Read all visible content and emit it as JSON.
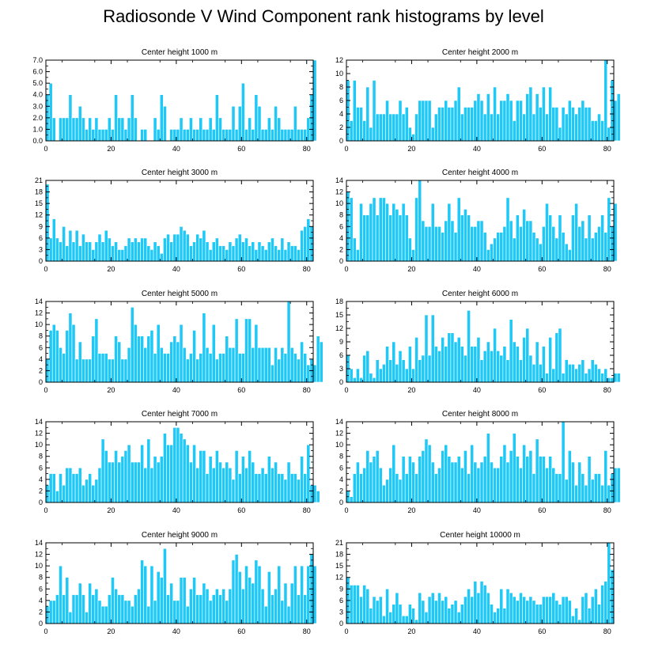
{
  "title": "Radiosonde V Wind Component rank histograms by level",
  "colors": {
    "bar": "#1ec8f7",
    "bar_edge": "#ffffff",
    "axis": "#000000"
  },
  "chart_data": [
    {
      "type": "bar",
      "title": "Center height 1000 m",
      "ylim": [
        0,
        7
      ],
      "yticks": [
        "0.0",
        "1.0",
        "2.0",
        "3.0",
        "4.0",
        "5.0",
        "6.0",
        "7.0"
      ],
      "xlim": [
        0,
        82
      ],
      "xticks": [
        0,
        20,
        40,
        60,
        80
      ],
      "values": [
        4,
        5,
        2,
        0,
        2,
        2,
        2,
        4,
        2,
        2,
        3,
        2,
        1,
        2,
        1,
        2,
        1,
        1,
        1,
        2,
        1,
        4,
        2,
        2,
        1,
        2,
        4,
        2,
        0,
        1,
        1,
        0,
        0,
        2,
        1,
        4,
        3,
        0,
        1,
        1,
        1,
        2,
        1,
        1,
        2,
        1,
        1,
        2,
        1,
        1,
        2,
        1,
        4,
        2,
        1,
        1,
        1,
        3,
        1,
        3,
        5,
        1,
        2,
        1,
        4,
        3,
        1,
        1,
        2,
        1,
        3,
        2,
        1,
        1,
        1,
        1,
        3,
        1,
        1,
        1,
        2,
        4,
        7
      ]
    },
    {
      "type": "bar",
      "title": "Center height 2000 m",
      "ylim": [
        0,
        12
      ],
      "yticks": [
        "0",
        "2",
        "4",
        "6",
        "8",
        "10",
        "12"
      ],
      "xlim": [
        0,
        82
      ],
      "xticks": [
        0,
        20,
        40,
        60,
        80
      ],
      "values": [
        9,
        3,
        9,
        5,
        5,
        3,
        8,
        2,
        9,
        4,
        4,
        4,
        6,
        4,
        4,
        4,
        6,
        4,
        5,
        2,
        1,
        4,
        6,
        6,
        6,
        6,
        2,
        4,
        5,
        5,
        6,
        5,
        5,
        6,
        8,
        4,
        5,
        5,
        5,
        6,
        7,
        6,
        4,
        7,
        4,
        8,
        4,
        6,
        6,
        7,
        6,
        3,
        6,
        6,
        4,
        7,
        8,
        4,
        7,
        5,
        8,
        4,
        8,
        5,
        5,
        2,
        5,
        4,
        6,
        5,
        4,
        5,
        6,
        5,
        5,
        3,
        3,
        4,
        3,
        12,
        2,
        9,
        6,
        7
      ]
    },
    {
      "type": "bar",
      "title": "Center height 3000 m",
      "ylim": [
        0,
        21
      ],
      "yticks": [
        "0",
        "3",
        "6",
        "9",
        "12",
        "15",
        "18",
        "21"
      ],
      "xlim": [
        0,
        82
      ],
      "xticks": [
        0,
        20,
        40,
        60,
        80
      ],
      "values": [
        20,
        6,
        11,
        6,
        5,
        9,
        4,
        8,
        5,
        8,
        4,
        7,
        5,
        5,
        3,
        5,
        7,
        5,
        8,
        6,
        4,
        5,
        3,
        3,
        4,
        6,
        5,
        6,
        5,
        6,
        6,
        4,
        3,
        5,
        4,
        2,
        6,
        7,
        5,
        7,
        7,
        9,
        8,
        7,
        4,
        5,
        7,
        6,
        8,
        5,
        3,
        5,
        6,
        4,
        4,
        3,
        5,
        4,
        6,
        7,
        5,
        6,
        4,
        5,
        3,
        5,
        4,
        3,
        5,
        6,
        4,
        3,
        6,
        3,
        5,
        4,
        4,
        3,
        8,
        9,
        11,
        9
      ]
    },
    {
      "type": "bar",
      "title": "Center height 4000 m",
      "ylim": [
        0,
        14
      ],
      "yticks": [
        "0",
        "2",
        "4",
        "6",
        "8",
        "10",
        "12",
        "14"
      ],
      "xlim": [
        0,
        82
      ],
      "xticks": [
        0,
        20,
        40,
        60,
        80
      ],
      "values": [
        12,
        11,
        4,
        2,
        10,
        8,
        8,
        10,
        11,
        8,
        11,
        11,
        10,
        8,
        10,
        9,
        8,
        10,
        8,
        4,
        2,
        11,
        14,
        7,
        6,
        6,
        10,
        6,
        6,
        5,
        7,
        10,
        7,
        5,
        11,
        8,
        9,
        8,
        6,
        6,
        7,
        7,
        5,
        2,
        3,
        4,
        5,
        5,
        6,
        11,
        7,
        4,
        8,
        6,
        9,
        7,
        7,
        5,
        4,
        3,
        6,
        10,
        8,
        6,
        4,
        8,
        5,
        3,
        2,
        8,
        10,
        6,
        7,
        4,
        8,
        4,
        5,
        6,
        8,
        5,
        11,
        6,
        10
      ]
    },
    {
      "type": "bar",
      "title": "Center height 5000 m",
      "ylim": [
        0,
        14
      ],
      "yticks": [
        "0",
        "2",
        "4",
        "6",
        "8",
        "10",
        "12",
        "14"
      ],
      "xlim": [
        0,
        82
      ],
      "xticks": [
        0,
        20,
        40,
        60,
        80
      ],
      "values": [
        4,
        9,
        10,
        9,
        6,
        5,
        9,
        12,
        10,
        4,
        7,
        4,
        4,
        4,
        8,
        11,
        5,
        5,
        5,
        4,
        4,
        8,
        7,
        4,
        4,
        6,
        13,
        10,
        8,
        8,
        6,
        8,
        9,
        5,
        10,
        6,
        5,
        5,
        7,
        8,
        7,
        10,
        6,
        4,
        5,
        9,
        4,
        5,
        12,
        6,
        5,
        10,
        4,
        5,
        5,
        8,
        6,
        6,
        11,
        5,
        5,
        11,
        11,
        6,
        10,
        6,
        6,
        6,
        6,
        3,
        6,
        4,
        6,
        5,
        14,
        6,
        5,
        4,
        7,
        5,
        3,
        4,
        3,
        8,
        7
      ]
    },
    {
      "type": "bar",
      "title": "Center height 6000 m",
      "ylim": [
        0,
        18
      ],
      "yticks": [
        "0",
        "3",
        "6",
        "9",
        "12",
        "15",
        "18"
      ],
      "xlim": [
        0,
        82
      ],
      "xticks": [
        0,
        20,
        40,
        60,
        80
      ],
      "values": [
        6,
        3,
        1,
        3,
        1,
        6,
        7,
        2,
        1,
        5,
        3,
        4,
        8,
        5,
        9,
        4,
        7,
        5,
        3,
        8,
        3,
        10,
        5,
        6,
        15,
        6,
        15,
        8,
        7,
        10,
        8,
        11,
        11,
        9,
        10,
        8,
        6,
        16,
        8,
        8,
        10,
        5,
        7,
        9,
        7,
        12,
        7,
        6,
        8,
        5,
        14,
        9,
        8,
        5,
        10,
        12,
        6,
        4,
        9,
        4,
        8,
        2,
        10,
        3,
        11,
        12,
        2,
        5,
        4,
        4,
        3,
        4,
        5,
        2,
        3,
        5,
        4,
        3,
        2,
        3,
        1,
        1,
        2,
        2
      ]
    },
    {
      "type": "bar",
      "title": "Center height 7000 m",
      "ylim": [
        0,
        14
      ],
      "yticks": [
        "0",
        "2",
        "4",
        "6",
        "8",
        "10",
        "12",
        "14"
      ],
      "xlim": [
        0,
        82
      ],
      "xticks": [
        0,
        20,
        40,
        60,
        80
      ],
      "values": [
        3,
        5,
        5,
        2,
        5,
        3,
        6,
        6,
        5,
        5,
        6,
        3,
        4,
        5,
        3,
        4,
        6,
        11,
        9,
        7,
        7,
        9,
        7,
        8,
        9,
        10,
        7,
        7,
        7,
        10,
        6,
        11,
        6,
        8,
        7,
        8,
        12,
        10,
        10,
        13,
        13,
        12,
        11,
        10,
        7,
        10,
        6,
        9,
        9,
        5,
        8,
        6,
        9,
        7,
        6,
        7,
        6,
        4,
        9,
        5,
        8,
        6,
        9,
        7,
        5,
        5,
        6,
        5,
        8,
        6,
        7,
        5,
        5,
        4,
        7,
        5,
        5,
        4,
        8,
        5,
        10,
        3,
        3,
        2
      ]
    },
    {
      "type": "bar",
      "title": "Center height 8000 m",
      "ylim": [
        0,
        14
      ],
      "yticks": [
        "0",
        "2",
        "4",
        "6",
        "8",
        "10",
        "12",
        "14"
      ],
      "xlim": [
        0,
        82
      ],
      "xticks": [
        0,
        20,
        40,
        60,
        80
      ],
      "values": [
        2,
        1,
        5,
        7,
        5,
        6,
        9,
        7,
        8,
        9,
        6,
        3,
        4,
        6,
        10,
        5,
        4,
        8,
        5,
        8,
        7,
        5,
        8,
        9,
        11,
        10,
        7,
        5,
        6,
        9,
        10,
        8,
        7,
        7,
        8,
        6,
        9,
        5,
        10,
        7,
        6,
        7,
        8,
        12,
        7,
        6,
        6,
        8,
        10,
        7,
        9,
        12,
        8,
        6,
        10,
        8,
        9,
        5,
        11,
        8,
        8,
        6,
        8,
        6,
        5,
        5,
        14,
        4,
        9,
        7,
        3,
        7,
        5,
        3,
        8,
        4,
        5,
        5,
        3,
        9,
        3,
        5,
        6,
        6
      ]
    },
    {
      "type": "bar",
      "title": "Center height 9000 m",
      "ylim": [
        0,
        14
      ],
      "yticks": [
        "0",
        "2",
        "4",
        "6",
        "8",
        "10",
        "12",
        "14"
      ],
      "xlim": [
        0,
        82
      ],
      "xticks": [
        0,
        20,
        40,
        60,
        80
      ],
      "values": [
        3,
        4,
        4,
        5,
        10,
        5,
        8,
        2,
        5,
        5,
        7,
        5,
        2,
        7,
        5,
        6,
        4,
        3,
        3,
        5,
        8,
        6,
        5,
        5,
        4,
        4,
        3,
        5,
        6,
        11,
        10,
        3,
        10,
        4,
        9,
        8,
        13,
        5,
        7,
        4,
        4,
        8,
        8,
        3,
        6,
        8,
        5,
        5,
        7,
        6,
        4,
        5,
        6,
        5,
        6,
        4,
        6,
        11,
        12,
        9,
        6,
        10,
        8,
        7,
        11,
        10,
        6,
        3,
        9,
        5,
        6,
        10,
        4,
        7,
        3,
        7,
        10,
        5,
        10,
        5,
        10,
        12,
        10
      ]
    },
    {
      "type": "bar",
      "title": "Center height 10000 m",
      "ylim": [
        0,
        21
      ],
      "yticks": [
        "0",
        "3",
        "6",
        "9",
        "12",
        "15",
        "18",
        "21"
      ],
      "xlim": [
        0,
        82
      ],
      "xticks": [
        0,
        20,
        40,
        60,
        80
      ],
      "values": [
        12,
        10,
        10,
        10,
        7,
        10,
        9,
        4,
        7,
        6,
        7,
        2,
        9,
        3,
        5,
        8,
        5,
        2,
        2,
        5,
        4,
        1,
        8,
        6,
        3,
        7,
        8,
        6,
        8,
        6,
        7,
        4,
        5,
        6,
        3,
        5,
        7,
        9,
        7,
        11,
        8,
        11,
        10,
        8,
        5,
        3,
        4,
        9,
        4,
        9,
        8,
        7,
        6,
        8,
        7,
        6,
        7,
        6,
        5,
        5,
        7,
        7,
        7,
        8,
        6,
        5,
        7,
        7,
        6,
        2,
        4,
        1,
        7,
        8,
        4,
        7,
        9,
        5,
        10,
        11,
        21,
        14
      ]
    }
  ]
}
